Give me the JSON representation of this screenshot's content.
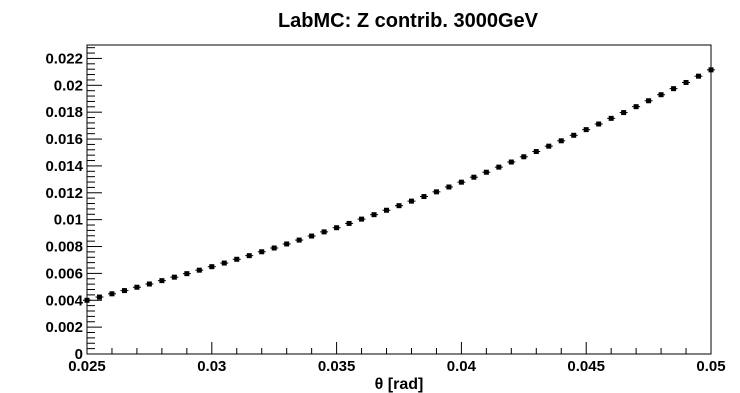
{
  "chart_data": {
    "type": "scatter",
    "title": "LabMC: Z contrib. 3000GeV",
    "xlabel": "θ [rad]",
    "ylabel": "",
    "xlim": [
      0.025,
      0.05
    ],
    "ylim": [
      0,
      0.023
    ],
    "x_ticks": [
      {
        "value": 0.025,
        "label": "0.025"
      },
      {
        "value": 0.03,
        "label": "0.03"
      },
      {
        "value": 0.035,
        "label": "0.035"
      },
      {
        "value": 0.04,
        "label": "0.04"
      },
      {
        "value": 0.045,
        "label": "0.045"
      },
      {
        "value": 0.05,
        "label": "0.05"
      }
    ],
    "y_ticks": [
      {
        "value": 0,
        "label": "0"
      },
      {
        "value": 0.002,
        "label": "0.002"
      },
      {
        "value": 0.004,
        "label": "0.004"
      },
      {
        "value": 0.006,
        "label": "0.006"
      },
      {
        "value": 0.008,
        "label": "0.008"
      },
      {
        "value": 0.01,
        "label": "0.01"
      },
      {
        "value": 0.012,
        "label": "0.012"
      },
      {
        "value": 0.014,
        "label": "0.014"
      },
      {
        "value": 0.016,
        "label": "0.016"
      },
      {
        "value": 0.018,
        "label": "0.018"
      },
      {
        "value": 0.02,
        "label": "0.02"
      },
      {
        "value": 0.022,
        "label": "0.022"
      }
    ],
    "grid": false,
    "series": [
      {
        "x": [
          0.025,
          0.0255,
          0.026,
          0.0265,
          0.027,
          0.0275,
          0.028,
          0.0285,
          0.029,
          0.0295,
          0.03,
          0.0305,
          0.031,
          0.0315,
          0.032,
          0.0325,
          0.033,
          0.0335,
          0.034,
          0.0345,
          0.035,
          0.0355,
          0.036,
          0.0365,
          0.037,
          0.0375,
          0.038,
          0.0385,
          0.039,
          0.0395,
          0.04,
          0.0405,
          0.041,
          0.0415,
          0.042,
          0.0425,
          0.043,
          0.0435,
          0.044,
          0.0445,
          0.045,
          0.0455,
          0.046,
          0.0465,
          0.047,
          0.0475,
          0.048,
          0.0485,
          0.049,
          0.0495,
          0.05
        ],
        "y": [
          0.004,
          0.00424,
          0.00448,
          0.00472,
          0.00497,
          0.00521,
          0.00546,
          0.00572,
          0.00598,
          0.00624,
          0.0065,
          0.00677,
          0.00705,
          0.00732,
          0.00761,
          0.00789,
          0.00819,
          0.00848,
          0.00878,
          0.00909,
          0.0094,
          0.00972,
          0.01004,
          0.01037,
          0.0107,
          0.01104,
          0.01138,
          0.01172,
          0.01207,
          0.01243,
          0.01279,
          0.01316,
          0.01353,
          0.01391,
          0.01429,
          0.01468,
          0.01507,
          0.01547,
          0.01587,
          0.01628,
          0.0167,
          0.01712,
          0.01754,
          0.01797,
          0.01841,
          0.01885,
          0.0193,
          0.01975,
          0.02021,
          0.02068,
          0.02115
        ]
      }
    ]
  }
}
